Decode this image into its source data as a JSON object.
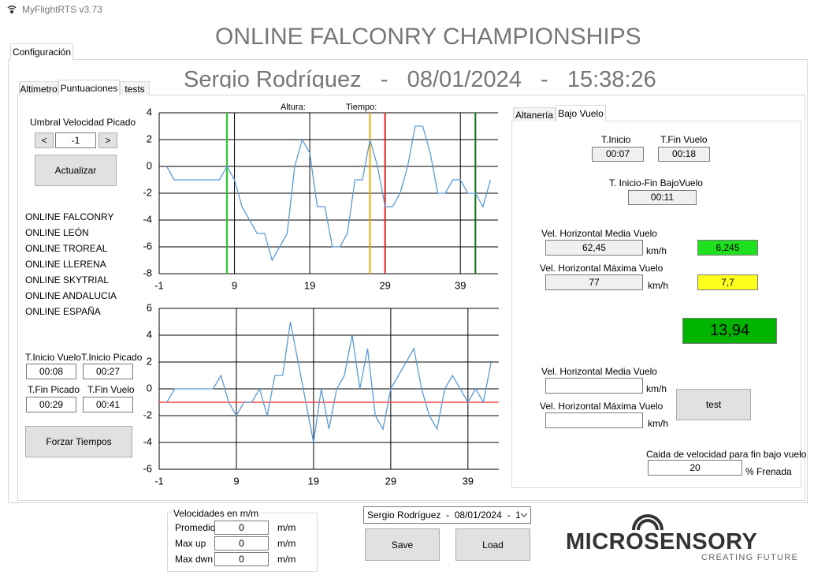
{
  "window": {
    "title": "MyFlightRTS v3.73"
  },
  "header": {
    "title": "ONLINE FALCONRY CHAMPIONSHIPS",
    "subtitle": "Sergio Rodríguez   -   08/01/2024   -   15:38:26"
  },
  "tabs": {
    "main": [
      "Configuración"
    ],
    "left": [
      "Altimetro",
      "Puntuaciones",
      "tests"
    ],
    "right": [
      "Altanería",
      "Bajo Vuelo"
    ]
  },
  "controls": {
    "threshold_label": "Umbral Velocidad Picado",
    "prev": "<",
    "threshold": "-1",
    "next": ">",
    "update": "Actualizar"
  },
  "competitions": [
    "ONLINE FALCONRY",
    "ONLINE LEÓN",
    "ONLINE TROREAL",
    "ONLINE LLERENA",
    "ONLINE SKYTRIAL",
    "ONLINE ANDALUCIA",
    "ONLINE ESPAÑA"
  ],
  "times": {
    "labels": [
      "T.Inicio Vuelo",
      "T.Inicio Picado",
      "T.Fin Picado",
      "T.Fin Vuelo"
    ],
    "values": [
      "00:08",
      "00:27",
      "00:29",
      "00:41"
    ],
    "force": "Forzar Tiempos"
  },
  "chart_data": [
    {
      "type": "line",
      "annotations": [
        "Altura:",
        "Tiempo:"
      ],
      "x": [
        0,
        1,
        2,
        3,
        4,
        5,
        6,
        7,
        8,
        9,
        10,
        11,
        12,
        13,
        14,
        15,
        16,
        17,
        18,
        19,
        20,
        21,
        22,
        23,
        24,
        25,
        26,
        27,
        28,
        29,
        30,
        31,
        32,
        33,
        34,
        35,
        36,
        37,
        38,
        39,
        40,
        41,
        42,
        43
      ],
      "series": [
        {
          "color": "#5b9bd5",
          "values": [
            0,
            -1,
            -1,
            -1,
            -1,
            -1,
            -1,
            -1,
            0,
            -1,
            -3,
            -4,
            -5,
            -5,
            -7,
            -6,
            -5,
            0,
            2,
            1,
            -3,
            -3,
            -6,
            -6,
            -5,
            -1,
            -1,
            2,
            0,
            -3,
            -3,
            -2,
            0,
            3,
            3,
            1,
            -2,
            -2,
            -1,
            -1,
            -2,
            -2,
            -3,
            -1
          ]
        }
      ],
      "xlim": [
        -1,
        44
      ],
      "ylim": [
        -8,
        4
      ],
      "xticks": [
        -1,
        9,
        19,
        29,
        39
      ],
      "yticks": [
        4,
        2,
        0,
        -2,
        -4,
        -6,
        -8
      ],
      "grid": true,
      "markers": [
        {
          "value": 8,
          "color": "#22cc22"
        },
        {
          "value": 27,
          "color": "#f0a800"
        },
        {
          "value": 29,
          "color": "#e02020"
        },
        {
          "value": 41,
          "color": "#107010"
        }
      ]
    },
    {
      "type": "line",
      "x": [
        0,
        1,
        2,
        3,
        4,
        5,
        6,
        7,
        8,
        9,
        10,
        11,
        12,
        13,
        14,
        15,
        16,
        17,
        18,
        19,
        20,
        21,
        22,
        23,
        24,
        25,
        26,
        27,
        28,
        29,
        30,
        31,
        32,
        33,
        34,
        35,
        36,
        37,
        38,
        39,
        40,
        41,
        42
      ],
      "series": [
        {
          "color": "#5b9bd5",
          "values": [
            -1,
            0,
            0,
            0,
            0,
            0,
            0,
            1,
            -1,
            -2,
            -1,
            -1,
            0,
            -2,
            1,
            1,
            5,
            2,
            -1,
            -4,
            0,
            -3,
            0,
            1,
            4,
            0,
            3,
            -2,
            -3,
            0,
            1,
            2,
            3,
            0,
            -2,
            -3,
            0,
            1,
            0,
            -1,
            0,
            -1,
            2
          ]
        }
      ],
      "xlim": [
        -1,
        43
      ],
      "ylim": [
        -6,
        6
      ],
      "xticks": [
        -1,
        9,
        19,
        29,
        39
      ],
      "yticks": [
        6,
        4,
        2,
        0,
        -2,
        -4,
        -6
      ],
      "grid": true,
      "hlines": [
        {
          "value": -1,
          "color": "#ff4a4a"
        }
      ]
    }
  ],
  "low_flight": {
    "start_label": "T.Inicio",
    "start": "00:07",
    "end_label": "T.Fin Vuelo",
    "end": "00:18",
    "span_label": "T. Inicio-Fin BajoVuelo",
    "span": "00:11",
    "mean_label": "Vel. Horizontal Media Vuelo",
    "mean": "62,45",
    "mean_unit": "km/h",
    "mean_score": "6,245",
    "max_label": "Vel. Horizontal Máxima Vuelo",
    "max": "77",
    "max_unit": "km/h",
    "max_score": "7,7",
    "total": "13,94",
    "mean2_label": "Vel. Horizontal Media Vuelo",
    "mean2_unit": "km/h",
    "max2_label": "Vel. Horizontal Máxima Vuelo",
    "max2_unit": "km/h",
    "test": "test",
    "drop_label": "Caida de velocidad para fin bajo vuelo",
    "drop": "20",
    "drop_unit": "% Frenada"
  },
  "speeds": {
    "title": "Velocidades en m/m",
    "rows": [
      [
        "Promedio",
        "0",
        "m/m"
      ],
      [
        "Max up",
        "0",
        "m/m"
      ],
      [
        "Max dwn",
        "0",
        "m/m"
      ]
    ]
  },
  "session": {
    "selected": "Sergio Rodríguez  -  08/01/2024  -  1",
    "save": "Save",
    "load": "Load"
  },
  "logo": {
    "name": "MICROSENSORY",
    "tagline": "CREATING FUTURE"
  }
}
